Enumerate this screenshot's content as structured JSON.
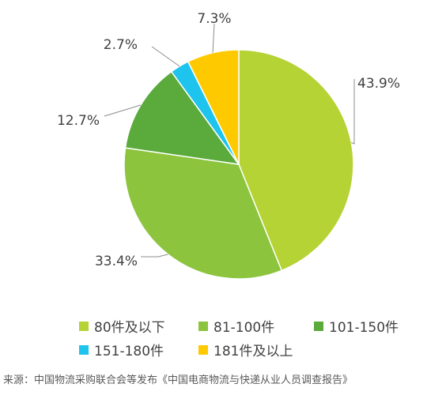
{
  "chart_data": {
    "type": "pie",
    "title": "",
    "start_angle_deg": 0,
    "direction": "clockwise",
    "slices": [
      {
        "label": "80件及以下",
        "value": 43.9,
        "value_label": "43.9%",
        "color": "#b5d334"
      },
      {
        "label": "81-100件",
        "value": 33.4,
        "value_label": "33.4%",
        "color": "#8cc43e"
      },
      {
        "label": "101-150件",
        "value": 12.7,
        "value_label": "12.7%",
        "color": "#5aaa3c"
      },
      {
        "label": "151-180件",
        "value": 2.7,
        "value_label": "2.7%",
        "color": "#1ec3ee"
      },
      {
        "label": "181件及以上",
        "value": 7.3,
        "value_label": "7.3%",
        "color": "#ffc900"
      }
    ],
    "legend_position": "bottom"
  },
  "source_text": "来源：中国物流采购联合会等发布《中国电商物流与快递从业人员调查报告》"
}
